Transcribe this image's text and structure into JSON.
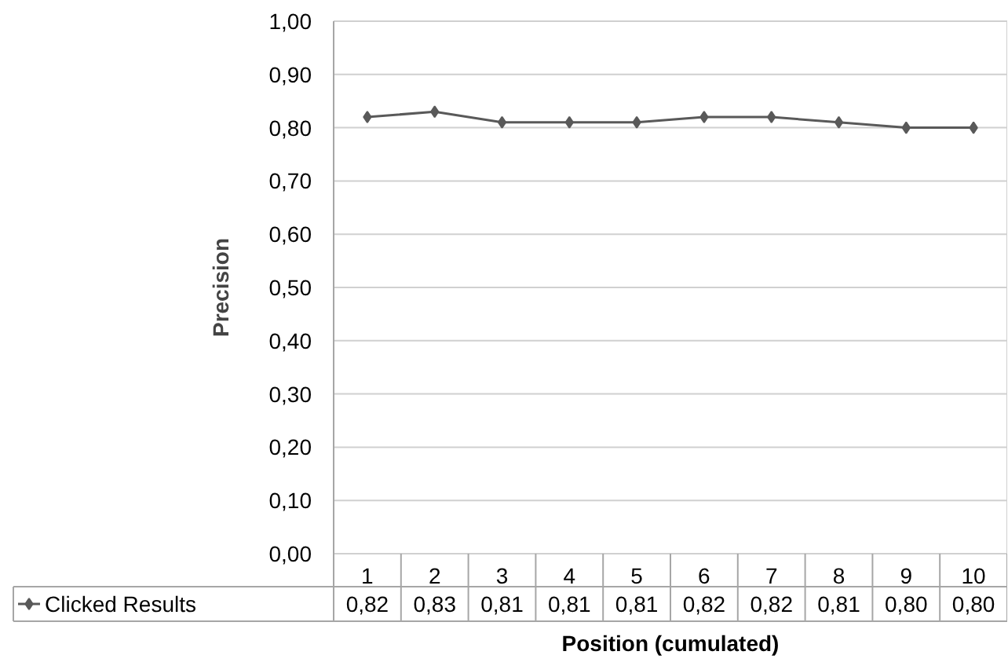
{
  "chart_data": {
    "type": "line",
    "xlabel": "Position (cumulated)",
    "ylabel": "Precision",
    "categories": [
      "1",
      "2",
      "3",
      "4",
      "5",
      "6",
      "7",
      "8",
      "9",
      "10"
    ],
    "series": [
      {
        "name": "Clicked Results",
        "color": "#595959",
        "values": [
          0.82,
          0.83,
          0.81,
          0.81,
          0.81,
          0.82,
          0.82,
          0.81,
          0.8,
          0.8
        ],
        "value_labels": [
          "0,82",
          "0,83",
          "0,81",
          "0,81",
          "0,81",
          "0,82",
          "0,82",
          "0,81",
          "0,80",
          "0,80"
        ]
      }
    ],
    "ylim": [
      0,
      1
    ],
    "yticks": [
      {
        "value": 0,
        "label": "0,00"
      },
      {
        "value": 0.1,
        "label": "0,10"
      },
      {
        "value": 0.2,
        "label": "0,20"
      },
      {
        "value": 0.3,
        "label": "0,30"
      },
      {
        "value": 0.4,
        "label": "0,40"
      },
      {
        "value": 0.5,
        "label": "0,50"
      },
      {
        "value": 0.6,
        "label": "0,60"
      },
      {
        "value": 0.7,
        "label": "0,70"
      },
      {
        "value": 0.8,
        "label": "0,80"
      },
      {
        "value": 0.9,
        "label": "0,90"
      },
      {
        "value": 1,
        "label": "1,00"
      }
    ],
    "grid": "y",
    "legend": "bottom",
    "marker": "diamond",
    "line_style": "solid"
  }
}
